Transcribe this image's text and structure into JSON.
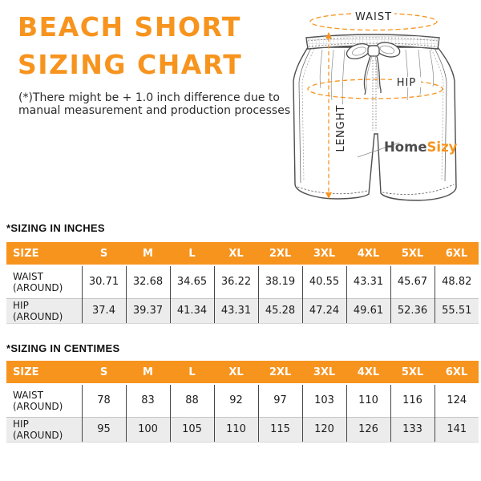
{
  "header": {
    "title_line1": "BEACH SHORT",
    "title_line2": "SIZING CHART",
    "disclaimer_line1": "(*)There might be + 1.0 inch difference due to",
    "disclaimer_line2": "manual measurement and production processes"
  },
  "illustration": {
    "labels": {
      "waist": "WAIST",
      "hip": "HIP",
      "length": "LENGHT"
    },
    "logo": {
      "part1": "Home",
      "part2": "Sizy"
    }
  },
  "colors": {
    "accent_orange": "#F7941E",
    "header_text_white": "#FFFFFF",
    "logo_gray": "#4D4D4D",
    "alt_row_gray": "#ECECEC",
    "text_dark": "#1C1C1C"
  },
  "chart_data": [
    {
      "type": "table",
      "title": "*SIZING IN INCHES",
      "columns": [
        "SIZE",
        "S",
        "M",
        "L",
        "XL",
        "2XL",
        "3XL",
        "4XL",
        "5XL",
        "6XL"
      ],
      "rows": [
        {
          "label": "WAIST (AROUND)",
          "values": [
            "30.71",
            "32.68",
            "34.65",
            "36.22",
            "38.19",
            "40.55",
            "43.31",
            "45.67",
            "48.82"
          ]
        },
        {
          "label": "HIP (AROUND)",
          "values": [
            "37.4",
            "39.37",
            "41.34",
            "43.31",
            "45.28",
            "47.24",
            "49.61",
            "52.36",
            "55.51"
          ]
        }
      ]
    },
    {
      "type": "table",
      "title": "*SIZING IN CENTIMES",
      "columns": [
        "SIZE",
        "S",
        "M",
        "L",
        "XL",
        "2XL",
        "3XL",
        "4XL",
        "5XL",
        "6XL"
      ],
      "rows": [
        {
          "label": "WAIST (AROUND)",
          "values": [
            "78",
            "83",
            "88",
            "92",
            "97",
            "103",
            "110",
            "116",
            "124"
          ]
        },
        {
          "label": "HIP (AROUND)",
          "values": [
            "95",
            "100",
            "105",
            "110",
            "115",
            "120",
            "126",
            "133",
            "141"
          ]
        }
      ]
    }
  ]
}
